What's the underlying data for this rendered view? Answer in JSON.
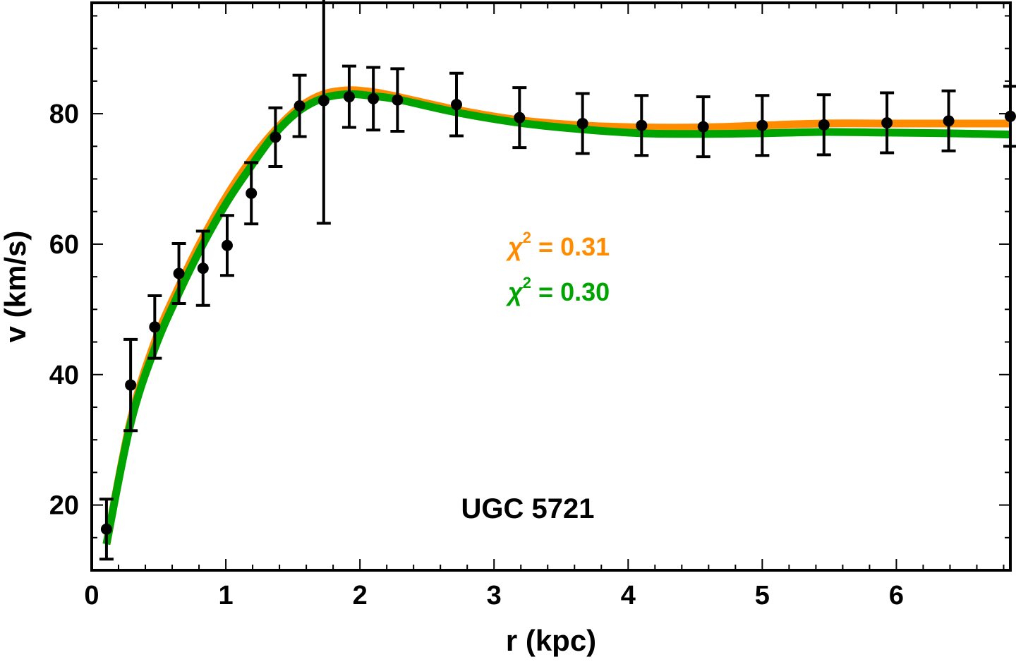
{
  "chart_data": {
    "type": "line",
    "title": "",
    "xlabel": "r (kpc)",
    "ylabel": "v (km/s)",
    "xlim": [
      0,
      6.85
    ],
    "ylim": [
      10,
      97
    ],
    "xticks": [
      0,
      1,
      2,
      3,
      4,
      5,
      6
    ],
    "yticks": [
      20,
      40,
      60,
      80
    ],
    "grid": false,
    "annotations": [
      {
        "symbol": "χ",
        "superscript": "2",
        "text": " = 0.31",
        "color": "#ff8c00"
      },
      {
        "symbol": "χ",
        "superscript": "2",
        "text": " = 0.30",
        "color": "#00a400"
      }
    ],
    "galaxy_label": "UGC 5721",
    "observations": {
      "r": [
        0.11,
        0.29,
        0.47,
        0.65,
        0.83,
        1.01,
        1.19,
        1.37,
        1.55,
        1.73,
        1.92,
        2.1,
        2.28,
        2.72,
        3.19,
        3.66,
        4.1,
        4.56,
        5.0,
        5.46,
        5.93,
        6.39,
        6.85
      ],
      "v": [
        16.3,
        38.4,
        47.3,
        55.5,
        56.3,
        59.8,
        67.8,
        76.4,
        81.2,
        82.0,
        82.6,
        82.3,
        82.1,
        81.4,
        79.4,
        78.5,
        78.2,
        78.0,
        78.2,
        78.3,
        78.6,
        78.9,
        79.6
      ],
      "err": [
        4.6,
        7.0,
        4.8,
        4.6,
        5.7,
        4.6,
        4.7,
        4.5,
        4.7,
        18.8,
        4.7,
        4.8,
        4.8,
        4.8,
        4.6,
        4.6,
        4.6,
        4.6,
        4.6,
        4.6,
        4.6,
        4.6,
        4.6
      ],
      "color": "#000000"
    },
    "series": [
      {
        "color": "#ff8c00",
        "x": [
          0.11,
          0.29,
          0.47,
          0.65,
          0.83,
          1.01,
          1.19,
          1.37,
          1.55,
          1.73,
          1.92,
          2.1,
          2.28,
          2.72,
          3.19,
          3.66,
          4.1,
          4.56,
          5.0,
          5.46,
          5.93,
          6.39,
          6.85
        ],
        "y": [
          14.0,
          33.0,
          45.0,
          53.5,
          61.0,
          67.5,
          73.0,
          77.5,
          81.0,
          83.0,
          83.6,
          83.3,
          82.6,
          80.6,
          79.0,
          78.2,
          77.9,
          77.9,
          78.2,
          78.5,
          78.5,
          78.5,
          78.5
        ]
      },
      {
        "color": "#00a400",
        "x": [
          0.11,
          0.29,
          0.47,
          0.65,
          0.83,
          1.01,
          1.19,
          1.37,
          1.55,
          1.73,
          1.92,
          2.1,
          2.28,
          2.72,
          3.19,
          3.66,
          4.1,
          4.56,
          5.0,
          5.46,
          5.93,
          6.39,
          6.85
        ],
        "y": [
          14.0,
          32.5,
          44.0,
          52.5,
          60.0,
          66.5,
          72.0,
          77.0,
          80.5,
          82.4,
          83.0,
          82.7,
          82.2,
          80.2,
          78.6,
          77.6,
          77.0,
          76.9,
          77.0,
          77.2,
          77.1,
          77.0,
          76.8
        ]
      }
    ]
  }
}
